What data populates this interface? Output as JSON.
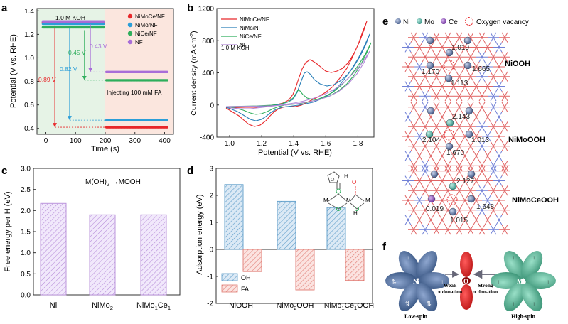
{
  "panels": {
    "a": "a",
    "b": "b",
    "c": "c",
    "d": "d",
    "e": "e",
    "f": "f"
  },
  "panel_a": {
    "ylabel": "Potential (V vs. RHE)",
    "xlabel": "Time (s)",
    "condition": "1.0 M KOH",
    "injection_note": "Injecting 100 mM FA",
    "legend": [
      "NiMoCe/NF",
      "NiMo/NF",
      "NiCe/NF",
      "NF"
    ],
    "drop_labels": [
      "0.89 V",
      "0.82 V",
      "0.45 V",
      "0.43 V"
    ],
    "yticks": [
      "0.4",
      "0.6",
      "0.8",
      "1.0",
      "1.2",
      "1.4"
    ],
    "xticks": [
      "0",
      "100",
      "200",
      "300",
      "400"
    ]
  },
  "chart_data": [
    {
      "type": "line",
      "title": "",
      "xlabel": "Time (s)",
      "ylabel": "Potential (V vs. RHE)",
      "xlim": [
        -30,
        430
      ],
      "ylim": [
        0.35,
        1.42
      ],
      "series": [
        {
          "name": "NiMoCe/NF",
          "color": "#e8272a",
          "before": 1.3,
          "after": 0.41,
          "drop": "0.89 V"
        },
        {
          "name": "NiMo/NF",
          "color": "#2a9ed8",
          "before": 1.29,
          "after": 0.47,
          "drop": "0.82 V"
        },
        {
          "name": "NiCe/NF",
          "color": "#2fae5c",
          "before": 1.26,
          "after": 0.81,
          "drop": "0.45 V"
        },
        {
          "name": "NF",
          "color": "#a86ed8",
          "before": 1.31,
          "after": 0.88,
          "drop": "0.43 V"
        }
      ],
      "injection_time": 200
    },
    {
      "type": "line",
      "title": "",
      "xlabel": "Potential (V vs. RHE)",
      "ylabel": "Current density (mA cm-2)",
      "xlim": [
        0.92,
        1.9
      ],
      "ylim": [
        -400,
        1200
      ],
      "legend": [
        "NiMoCe/NF",
        "NiMo/NF",
        "NiCe/NF",
        "NF"
      ],
      "annotation": "1.0 M KOH"
    },
    {
      "type": "bar",
      "title": "M(OH)2 → MOOH",
      "xlabel": "",
      "ylabel": "Free energy per H (eV)",
      "categories": [
        "Ni",
        "NiMo2",
        "NiMo1Ce1"
      ],
      "values": [
        2.17,
        1.9,
        1.9
      ],
      "ylim": [
        0,
        3.0
      ]
    },
    {
      "type": "bar",
      "title": "",
      "xlabel": "",
      "ylabel": "Adsorption energy (eV)",
      "categories": [
        "NiOOH",
        "NiMo2OOH",
        "NiMo1Ce1OOH"
      ],
      "series": [
        {
          "name": "OH",
          "values": [
            2.4,
            1.78,
            1.55
          ]
        },
        {
          "name": "FA",
          "values": [
            -0.82,
            -1.5,
            -1.15
          ]
        }
      ],
      "ylim": [
        -2.0,
        3.0
      ]
    }
  ],
  "panel_b": {
    "ylabel": "Current density (mA cm",
    "ylabel_sup": "-2",
    "ylabel_close": ")",
    "xlabel": "Potential (V vs. RHE)",
    "condition": "1.0 M KOH",
    "legend": [
      "NiMoCe/NF",
      "NiMo/NF",
      "NiCe/NF",
      "NF"
    ],
    "yticks": [
      "-400",
      "0",
      "400",
      "800",
      "1200"
    ],
    "xticks": [
      "1.0",
      "1.2",
      "1.4",
      "1.6",
      "1.8"
    ]
  },
  "panel_c": {
    "ylabel": "Free energy per H (eV)",
    "title": "M(OH)",
    "title_sub": "2",
    "title_rest": " →MOOH",
    "yticks": [
      "0.0",
      "0.5",
      "1.0",
      "1.5",
      "2.0",
      "2.5",
      "3.0"
    ],
    "cat1": "Ni",
    "cat2_main": "NiMo",
    "cat2_sub": "2",
    "cat3_main": "NiMo",
    "cat3_sub1": "1",
    "cat3_mid": "Ce",
    "cat3_sub2": "1"
  },
  "panel_d": {
    "ylabel": "Adsorption energy (eV)",
    "legend": [
      "OH",
      "FA"
    ],
    "yticks": [
      "-2",
      "-1",
      "0",
      "1",
      "2",
      "3"
    ],
    "cat1": "NiOOH",
    "cat2_a": "NiMo",
    "cat2_sub": "2",
    "cat2_b": "OOH",
    "cat3_a": "NiMo",
    "cat3_sub1": "1",
    "cat3_b": "Ce",
    "cat3_sub2": "1",
    "cat3_c": "OOH",
    "inset_atoms": {
      "O": "O",
      "H": "H",
      "M": "M"
    }
  },
  "panel_e": {
    "legend": {
      "ni": "Ni",
      "mo": "Mo",
      "ce": "Ce",
      "vac": "Oxygen vacancy"
    },
    "structures": [
      {
        "name": "NiOOH",
        "values": [
          "1.019",
          "1.170",
          "1.665",
          "1.113"
        ]
      },
      {
        "name": "NiMoOOH",
        "values": [
          "2.143",
          "2.104",
          "1.013",
          "1.670"
        ]
      },
      {
        "name": "NiMoCeOOH",
        "values": [
          "2.127",
          "0.019",
          "1.648",
          "1.015"
        ]
      }
    ]
  },
  "panel_f": {
    "ni": "Ni",
    "o": "O",
    "mo": "Mo",
    "weak_1": "Weak",
    "weak_2": "π donation",
    "strong_1": "Strong",
    "strong_2": "π donation",
    "low_spin": "Low-spin",
    "high_spin": "High-spin"
  },
  "colors": {
    "nimoce": "#e8272a",
    "nimo": "#2a9ed8",
    "nice": "#2fae5c",
    "nf": "#a86ed8",
    "oh_bar": "#5b9bc8",
    "fa_bar": "#e07a72",
    "c_bar": "#b48ad8",
    "ni_atom": "#4a5f8c",
    "mo_atom": "#4aa99c",
    "ce_atom": "#7a3aa8"
  }
}
